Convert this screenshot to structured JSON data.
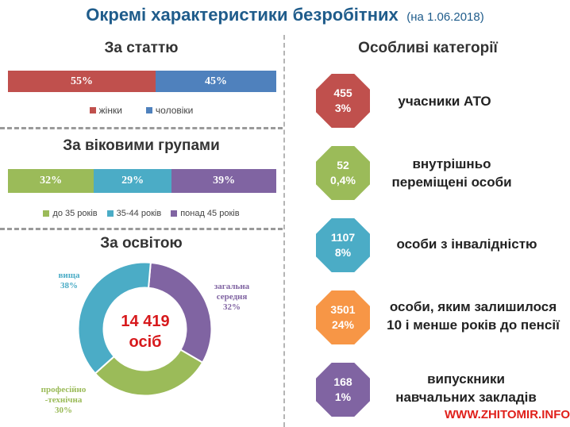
{
  "title": {
    "main": "Окремі характеристики безробітних",
    "date": "(на 1.06.2018)"
  },
  "colors": {
    "red": "#c0504d",
    "blue": "#4f81bd",
    "green": "#9bbb59",
    "teal": "#4bacc6",
    "purple": "#8064a2",
    "orange": "#f79646"
  },
  "chart_data": [
    {
      "type": "bar",
      "title": "За статтю",
      "series": [
        {
          "name": "жінки",
          "value": 55,
          "label": "55%",
          "color": "#c0504d"
        },
        {
          "name": "чоловіки",
          "value": 45,
          "label": "45%",
          "color": "#4f81bd"
        }
      ]
    },
    {
      "type": "bar",
      "title": "За віковими групами",
      "series": [
        {
          "name": "до 35 років",
          "value": 32,
          "label": "32%",
          "color": "#9bbb59"
        },
        {
          "name": "35-44 років",
          "value": 29,
          "label": "29%",
          "color": "#4bacc6"
        },
        {
          "name": "понад 45 років",
          "value": 39,
          "label": "39%",
          "color": "#8064a2"
        }
      ]
    },
    {
      "type": "pie",
      "title": "За освітою",
      "center_value": "14 419",
      "center_unit": "осіб",
      "slices": [
        {
          "line1": "загальна",
          "line2": "середня",
          "line3": "32%",
          "value": 32,
          "color": "#8064a2"
        },
        {
          "line1": "професійно",
          "line2": "-технічна",
          "line3": "30%",
          "value": 30,
          "color": "#9bbb59"
        },
        {
          "line1": "вища",
          "line2": "38%",
          "line3": "",
          "value": 38,
          "color": "#4bacc6"
        }
      ]
    }
  ],
  "categories": {
    "title": "Особливі категорії",
    "items": [
      {
        "count": "455",
        "percent": "3%",
        "line1": "учасники АТО",
        "line2": "",
        "color": "#c0504d"
      },
      {
        "count": "52",
        "percent": "0,4%",
        "line1": "внутрішньо",
        "line2": "переміщені особи",
        "color": "#9bbb59"
      },
      {
        "count": "1107",
        "percent": "8%",
        "line1": "особи з інвалідністю",
        "line2": "",
        "color": "#4bacc6"
      },
      {
        "count": "3501",
        "percent": "24%",
        "line1": "особи, яким залишилося",
        "line2": "10 і менше років до пенсії",
        "color": "#f79646"
      },
      {
        "count": "168",
        "percent": "1%",
        "line1": "випускники",
        "line2": "навчальних закладів",
        "color": "#8064a2"
      }
    ]
  },
  "watermark": "WWW.ZHITOMIR.INFO"
}
